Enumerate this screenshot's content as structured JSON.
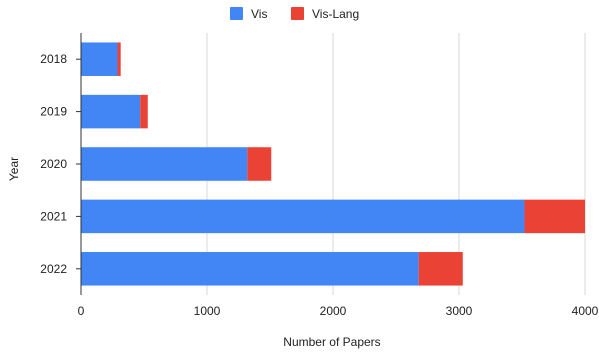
{
  "chart_data": {
    "type": "bar",
    "orientation": "horizontal",
    "stacked": true,
    "categories": [
      "2018",
      "2019",
      "2020",
      "2021",
      "2022"
    ],
    "series": [
      {
        "name": "Vis",
        "values": [
          290,
          470,
          1320,
          3520,
          2680
        ],
        "color": "#4285f4"
      },
      {
        "name": "Vis-Lang",
        "values": [
          25,
          60,
          190,
          480,
          350
        ],
        "color": "#ea4335"
      }
    ],
    "title": "",
    "xlabel": "Number of Papers",
    "ylabel": "Year",
    "xlim": [
      0,
      4000
    ],
    "xticks": [
      "0",
      "1000",
      "2000",
      "3000",
      "4000"
    ],
    "grid": true,
    "legend_position": "top-center"
  }
}
